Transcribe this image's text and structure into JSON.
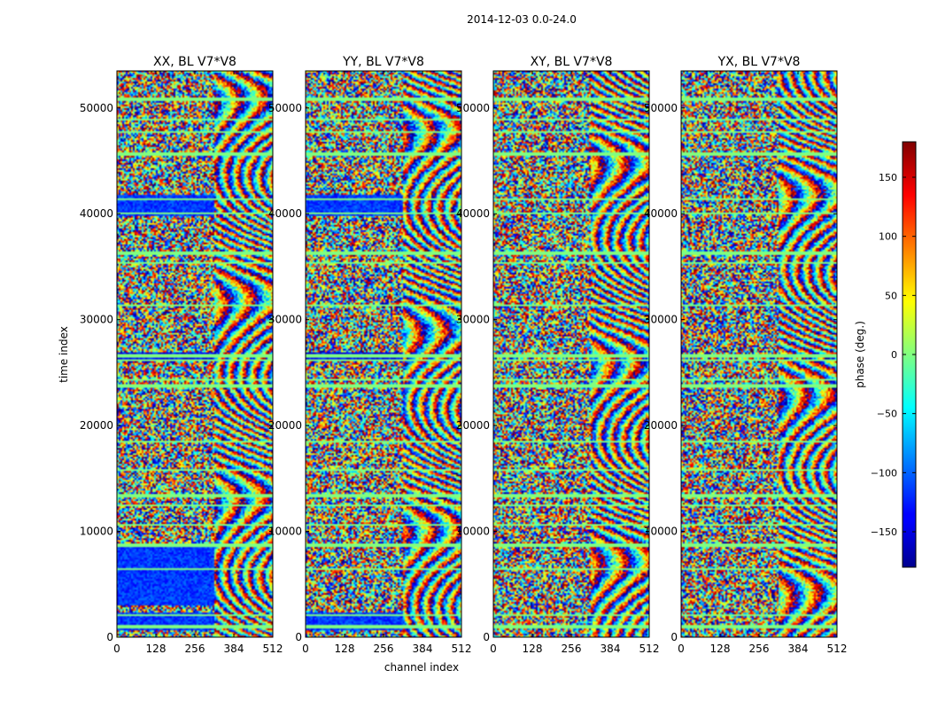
{
  "chart_data": {
    "type": "heatmap",
    "suptitle": "2014-12-03 0.0-24.0",
    "xlabel": "channel index",
    "ylabel": "time index",
    "xlim": [
      0,
      512
    ],
    "ylim": [
      0,
      53500
    ],
    "x_ticks": [
      0,
      128,
      256,
      384,
      512
    ],
    "y_ticks": [
      0,
      10000,
      20000,
      30000,
      40000,
      50000
    ],
    "colormap": "jet",
    "colorbar": {
      "label": "phase (deg.)",
      "range": [
        -180,
        180
      ],
      "ticks": [
        150,
        100,
        50,
        0,
        -50,
        -100,
        -150
      ],
      "tick_labels": [
        "150",
        "100",
        "50",
        "0",
        "−50",
        "−100",
        "−150"
      ]
    },
    "panels": [
      {
        "title": "XX, BL V7*V8",
        "pol": "XX"
      },
      {
        "title": "YY, BL V7*V8",
        "pol": "YY"
      },
      {
        "title": "XY, BL V7*V8",
        "pol": "XY"
      },
      {
        "title": "YX, BL V7*V8",
        "pol": "YX"
      }
    ],
    "flagged_bands_time_index": [
      51000,
      49000,
      47800,
      45800,
      41500,
      40200,
      36500,
      35500,
      31500,
      26800,
      26200,
      24400,
      23900,
      18500,
      15800,
      13500,
      12500,
      10700,
      8800,
      6500,
      2200,
      1200
    ],
    "fringe_start_channel": 320
  }
}
